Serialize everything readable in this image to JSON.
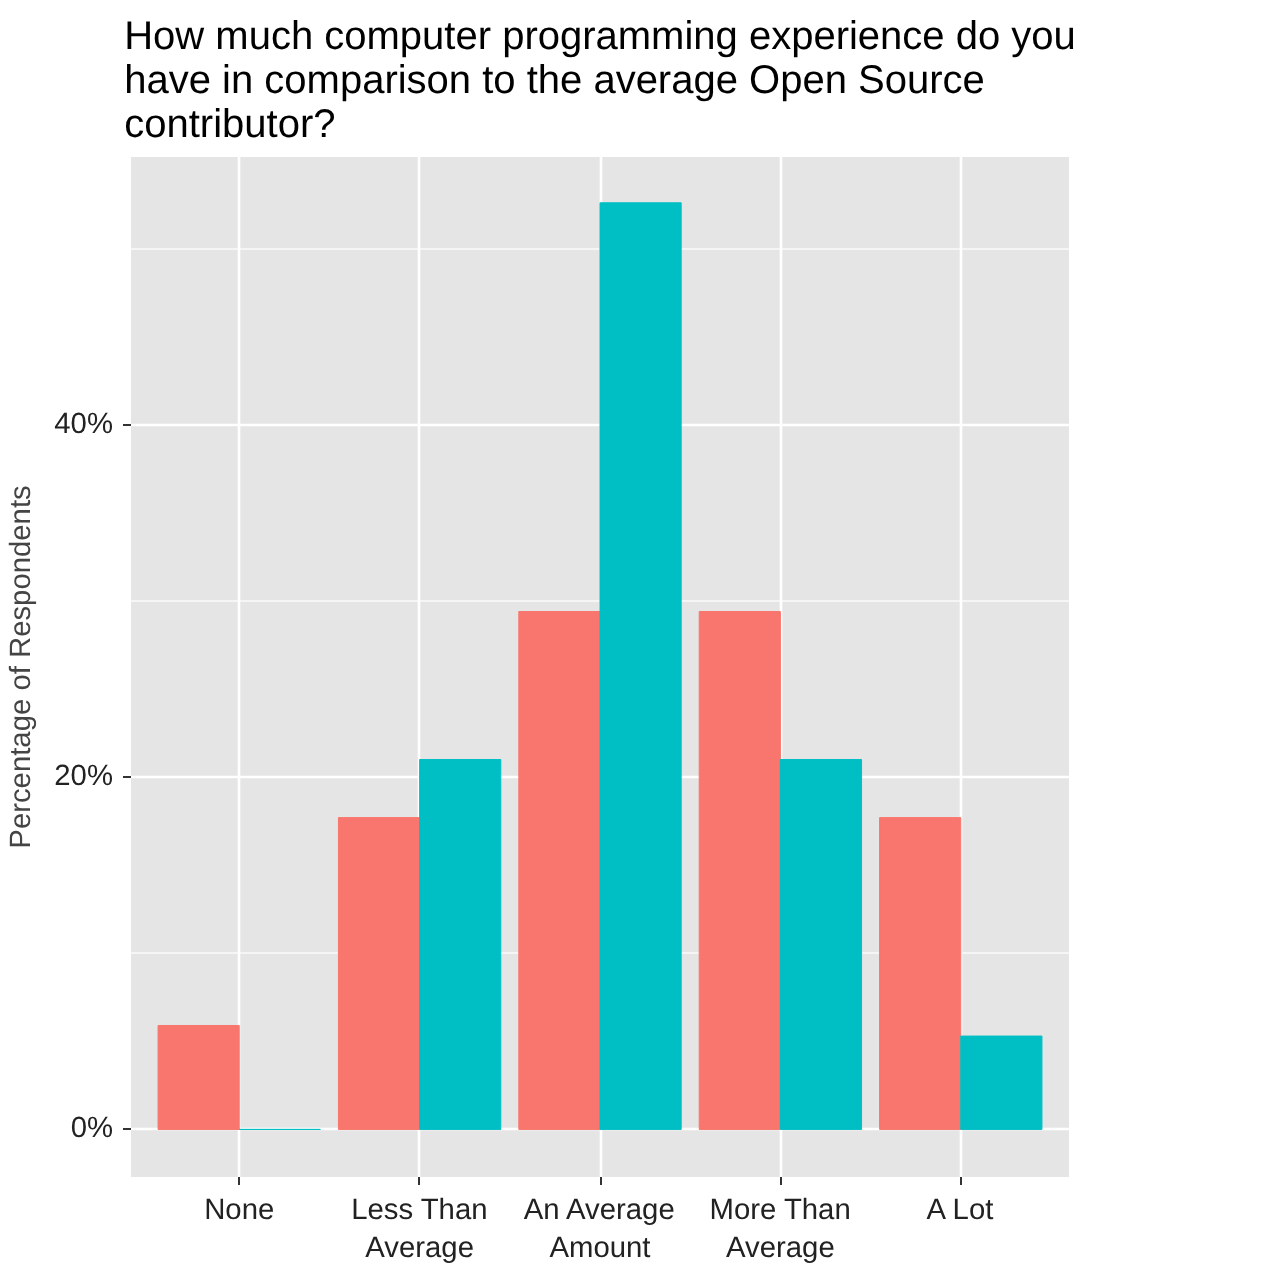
{
  "chart_data": {
    "type": "bar",
    "title": "How much computer programming experience do you have in comparison to the average Open Source contributor?",
    "ylabel": "Percentage of Respondents",
    "categories": [
      "None",
      "Less Than Average",
      "An Average Amount",
      "More Than Average",
      "A Lot"
    ],
    "series": [
      {
        "color": "#f8766d",
        "values": [
          5.9,
          17.7,
          29.4,
          29.4,
          17.7
        ]
      },
      {
        "color": "#00bfc4",
        "values": [
          0,
          21.0,
          52.6,
          21.0,
          5.3
        ]
      }
    ],
    "ylim": [
      -2.7,
      55.2
    ],
    "yticks": [
      {
        "value": 0,
        "label": "0%"
      },
      {
        "value": 20,
        "label": "20%"
      },
      {
        "value": 40,
        "label": "40%"
      }
    ],
    "grid": true
  }
}
